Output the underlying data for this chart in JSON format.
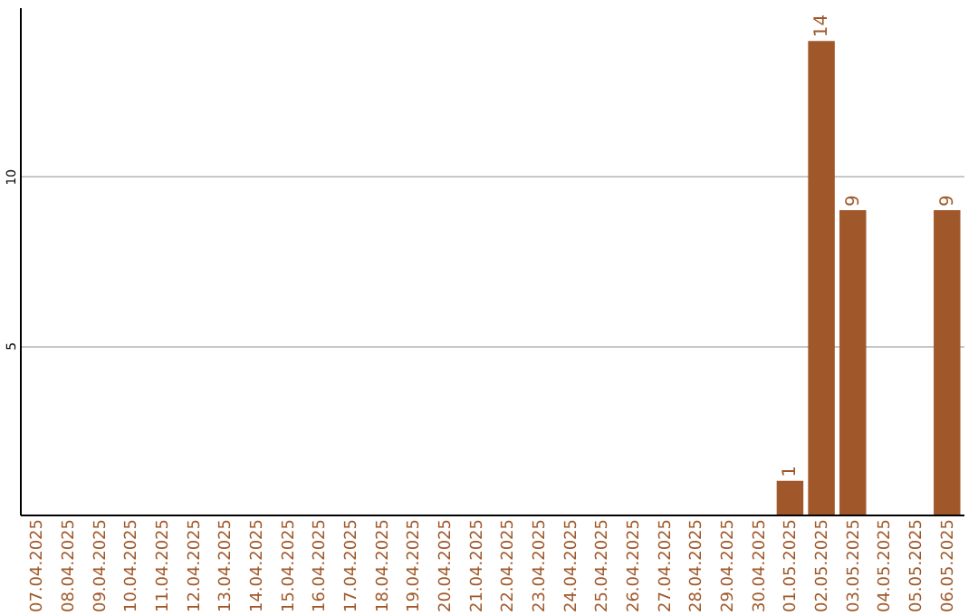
{
  "chart_data": {
    "type": "bar",
    "categories": [
      "07.04.2025",
      "08.04.2025",
      "09.04.2025",
      "10.04.2025",
      "11.04.2025",
      "12.04.2025",
      "13.04.2025",
      "14.04.2025",
      "15.04.2025",
      "16.04.2025",
      "17.04.2025",
      "18.04.2025",
      "19.04.2025",
      "20.04.2025",
      "21.04.2025",
      "22.04.2025",
      "23.04.2025",
      "24.04.2025",
      "25.04.2025",
      "26.04.2025",
      "27.04.2025",
      "28.04.2025",
      "29.04.2025",
      "30.04.2025",
      "01.05.2025",
      "02.05.2025",
      "03.05.2025",
      "04.05.2025",
      "05.05.2025",
      "06.05.2025"
    ],
    "values": [
      0,
      0,
      0,
      0,
      0,
      0,
      0,
      0,
      0,
      0,
      0,
      0,
      0,
      0,
      0,
      0,
      0,
      0,
      0,
      0,
      0,
      0,
      0,
      0,
      1,
      14,
      9,
      0,
      0,
      9
    ],
    "value_labels": [
      null,
      null,
      null,
      null,
      null,
      null,
      null,
      null,
      null,
      null,
      null,
      null,
      null,
      null,
      null,
      null,
      null,
      null,
      null,
      null,
      null,
      null,
      null,
      null,
      "1",
      "14",
      "9",
      null,
      null,
      "9"
    ],
    "color": "#a0582a",
    "ylim": [
      0,
      15
    ],
    "yticks": [
      5,
      10
    ],
    "grid": "y"
  }
}
